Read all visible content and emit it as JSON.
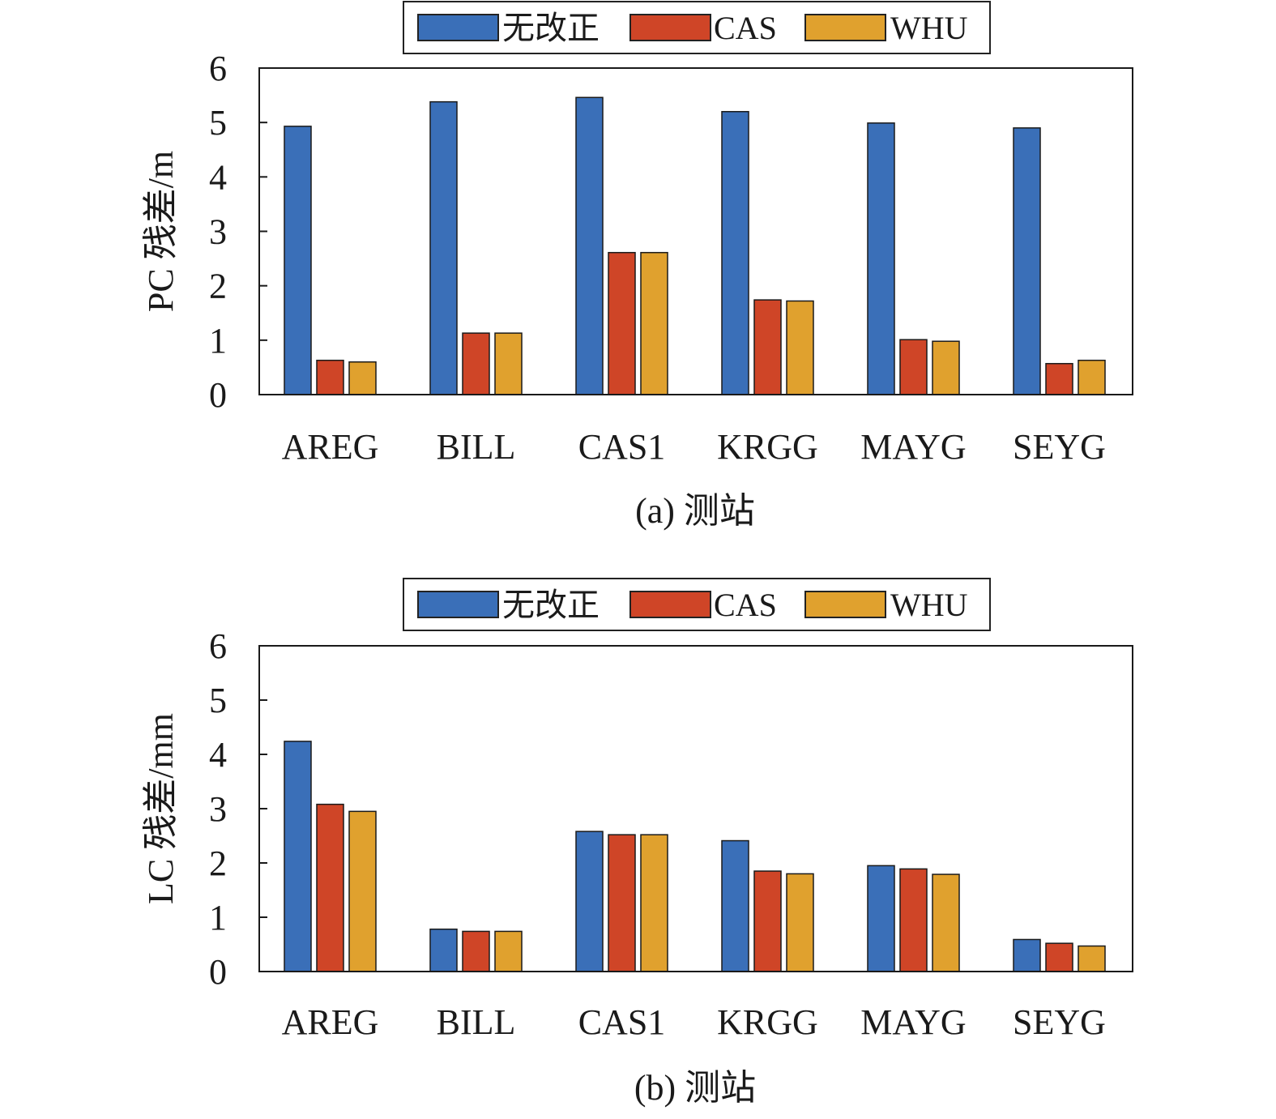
{
  "chart_data": [
    {
      "type": "bar",
      "ylabel": "PC 残差/m",
      "xlabel": "(a) 测站",
      "categories": [
        "AREG",
        "BILL",
        "CAS1",
        "KRGG",
        "MAYG",
        "SEYG"
      ],
      "yticks": [
        "0",
        "1",
        "2",
        "3",
        "4",
        "5",
        "6"
      ],
      "ylim": [
        0,
        6
      ],
      "legend_position": "top-center",
      "grid": false,
      "series": [
        {
          "name": "无改正",
          "color": "#3a6fb8",
          "values": [
            4.93,
            5.38,
            5.46,
            5.2,
            4.99,
            4.9
          ]
        },
        {
          "name": "CAS",
          "color": "#cf4527",
          "values": [
            0.63,
            1.13,
            2.61,
            1.74,
            1.01,
            0.57
          ]
        },
        {
          "name": "WHU",
          "color": "#e0a12e",
          "values": [
            0.6,
            1.13,
            2.61,
            1.72,
            0.98,
            0.63
          ]
        }
      ]
    },
    {
      "type": "bar",
      "ylabel": "LC 残差/mm",
      "xlabel": "(b) 测站",
      "categories": [
        "AREG",
        "BILL",
        "CAS1",
        "KRGG",
        "MAYG",
        "SEYG"
      ],
      "yticks": [
        "0",
        "1",
        "2",
        "3",
        "4",
        "5",
        "6"
      ],
      "ylim": [
        0,
        6
      ],
      "legend_position": "top-center",
      "grid": false,
      "series": [
        {
          "name": "无改正",
          "color": "#3a6fb8",
          "values": [
            4.24,
            0.78,
            2.58,
            2.41,
            1.95,
            0.59
          ]
        },
        {
          "name": "CAS",
          "color": "#cf4527",
          "values": [
            3.08,
            0.74,
            2.52,
            1.85,
            1.89,
            0.52
          ]
        },
        {
          "name": "WHU",
          "color": "#e0a12e",
          "values": [
            2.95,
            0.74,
            2.52,
            1.8,
            1.79,
            0.47
          ]
        }
      ]
    }
  ]
}
